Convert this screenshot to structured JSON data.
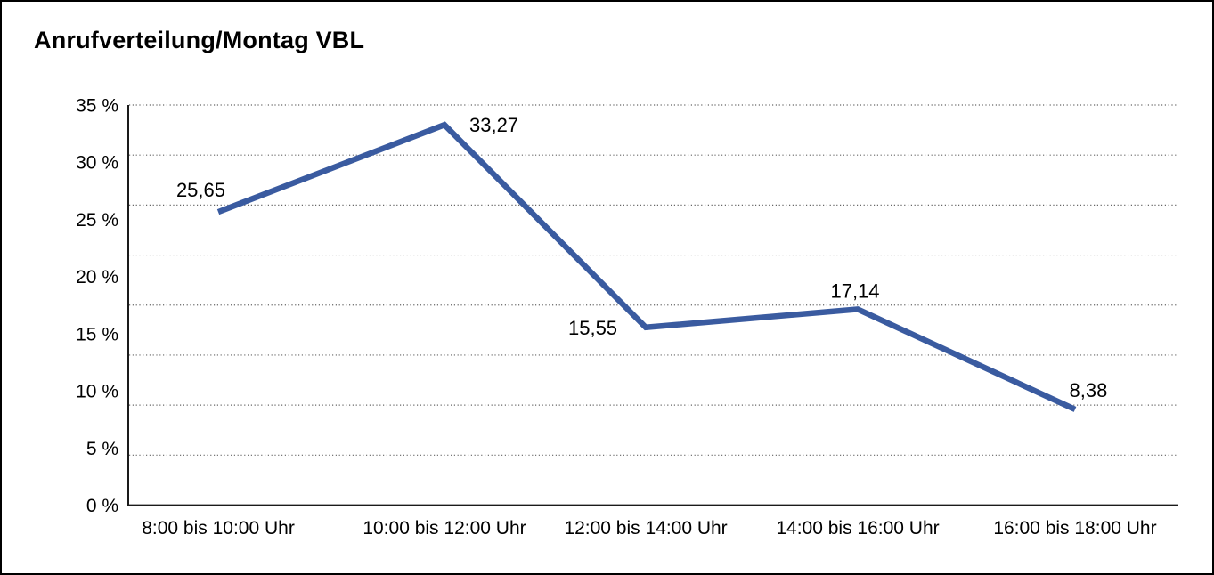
{
  "window": {
    "background": "#FFFFFF",
    "frame_color": "#000000"
  },
  "chart_data": {
    "type": "line",
    "title": "Anrufverteilung/Montag VBL",
    "categories": [
      "8:00 bis 10:00 Uhr",
      "10:00 bis 12:00 Uhr",
      "12:00 bis 14:00 Uhr",
      "14:00 bis 16:00 Uhr",
      "16:00 bis 18:00 Uhr"
    ],
    "values": [
      25.65,
      33.27,
      15.55,
      17.14,
      8.38
    ],
    "value_labels": [
      "25,65",
      "33,27",
      "15,55",
      "17,14",
      "8,38"
    ],
    "xlabel": "",
    "ylabel": "",
    "ylim": [
      0,
      35
    ],
    "y_ticks": [
      {
        "value": 35,
        "label": "35 %"
      },
      {
        "value": 30,
        "label": "30 %"
      },
      {
        "value": 25,
        "label": "25 %"
      },
      {
        "value": 20,
        "label": "20 %"
      },
      {
        "value": 15,
        "label": "15 %"
      },
      {
        "value": 10,
        "label": "10 %"
      },
      {
        "value": 5,
        "label": "5 %"
      },
      {
        "value": 0,
        "label": "0 %"
      }
    ],
    "grid": "dotted-horizontal",
    "grid_divisions": 8,
    "legend": "none",
    "line_color": "#3A5BA0",
    "text_color": "#000000"
  }
}
